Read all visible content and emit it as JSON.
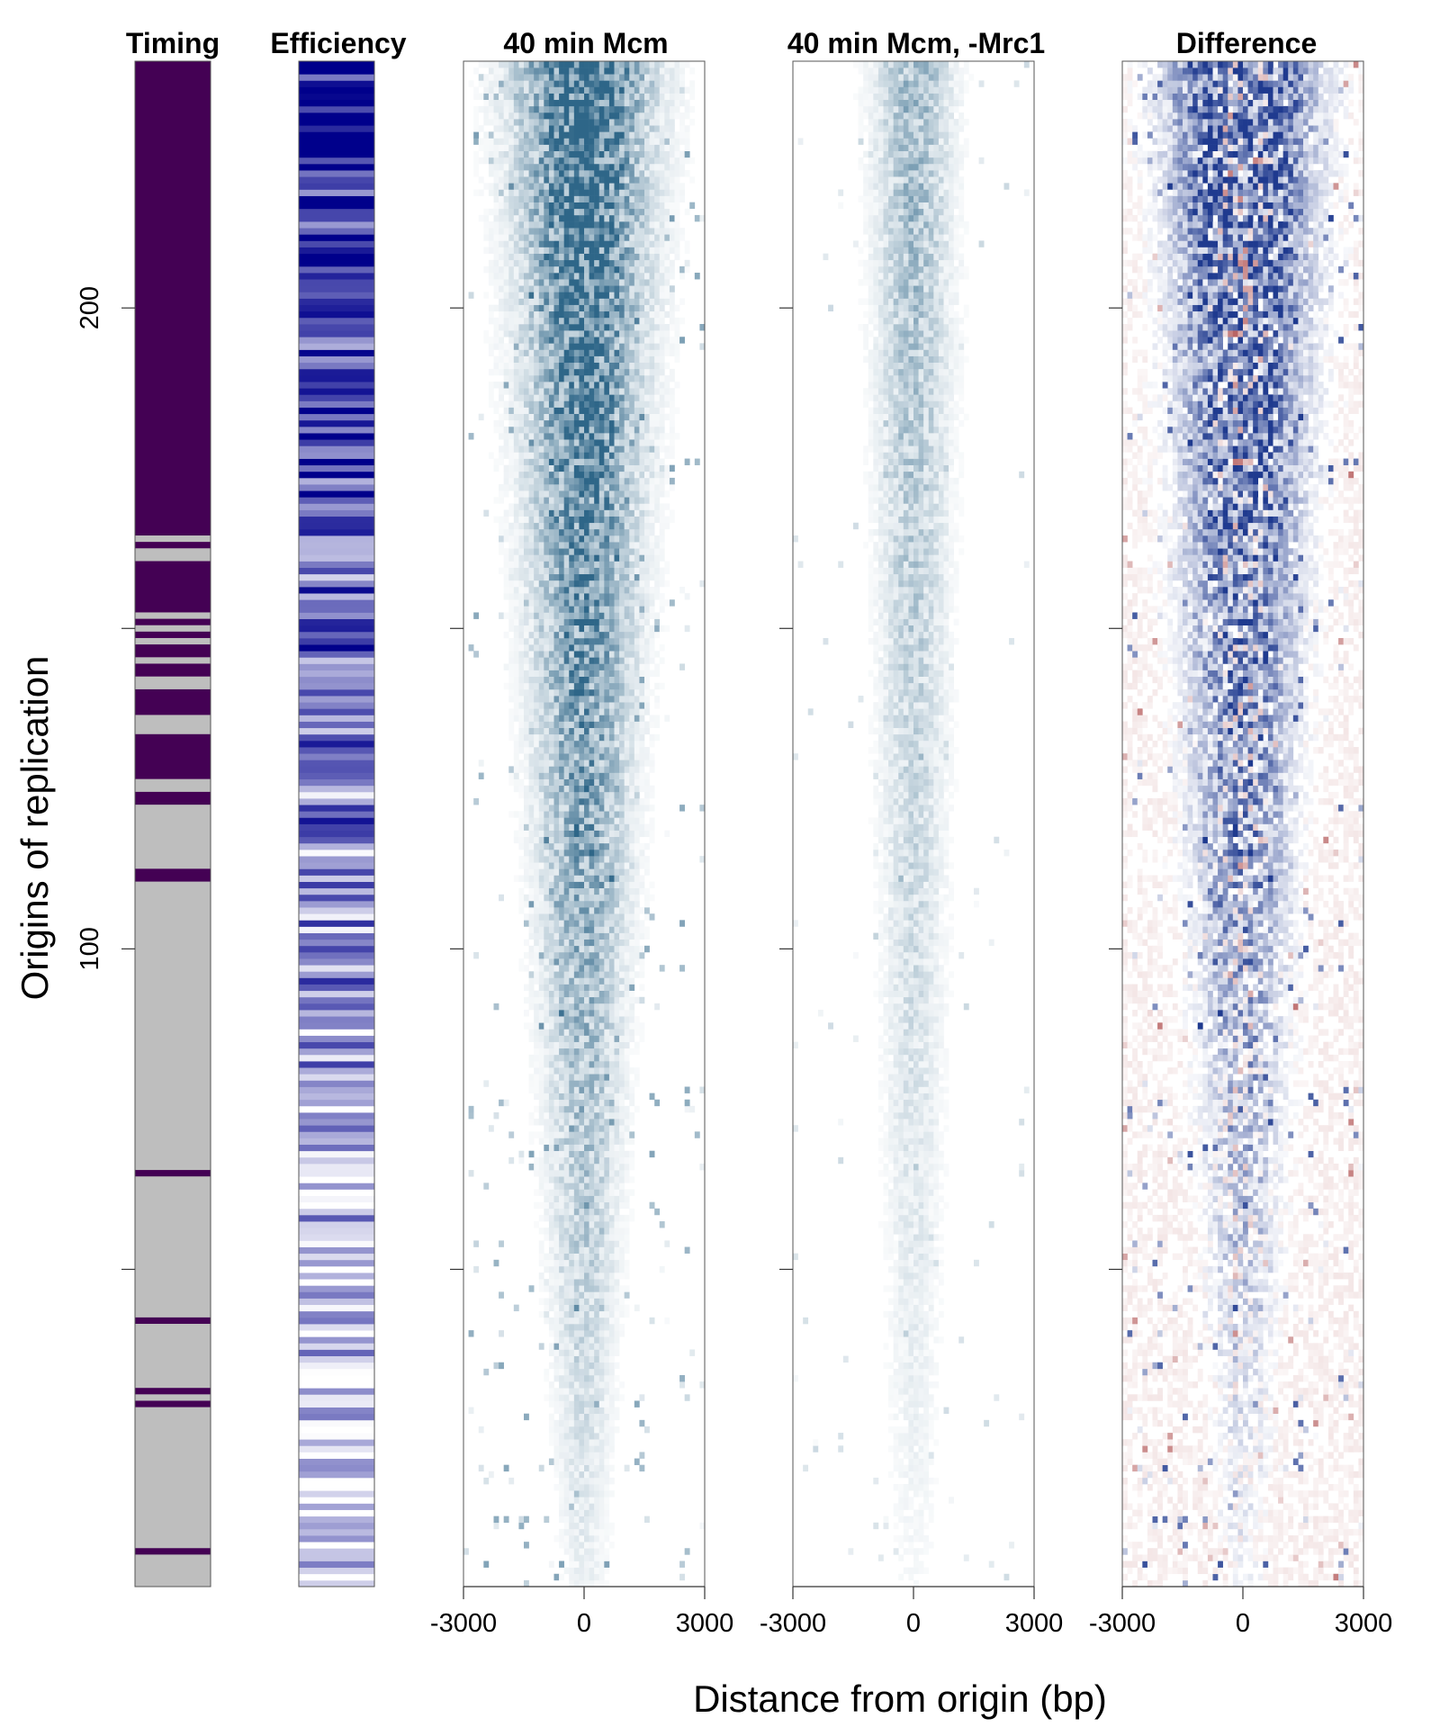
{
  "chart_data": {
    "type": "heatmap",
    "ylabel": "Origins of replication",
    "xlabel": "Distance from origin (bp)",
    "n_origins": 238,
    "yticks": [
      {
        "value": 200,
        "label": "200"
      },
      {
        "value": 150,
        "label": ""
      },
      {
        "value": 100,
        "label": "100"
      },
      {
        "value": 50,
        "label": ""
      }
    ],
    "xticks": [
      {
        "value": -3000,
        "label": "-3000"
      },
      {
        "value": 0,
        "label": "0"
      },
      {
        "value": 3000,
        "label": "3000"
      }
    ],
    "xlim": [
      -3000,
      3000
    ],
    "panels": [
      {
        "id": "timing",
        "title": "Timing",
        "kind": "category",
        "colors": {
          "early": "#440154",
          "late": "#bebebe"
        },
        "early_origins": [
          [
            165,
            238
          ],
          [
            163,
            163
          ],
          [
            153,
            160
          ],
          [
            151,
            151
          ],
          [
            149,
            149
          ],
          [
            146,
            147
          ],
          [
            143,
            144
          ],
          [
            137,
            140
          ],
          [
            127,
            133
          ],
          [
            123,
            124
          ],
          [
            111,
            112
          ],
          [
            65,
            65
          ],
          [
            42,
            42
          ],
          [
            31,
            31
          ],
          [
            29,
            29
          ],
          [
            6,
            6
          ]
        ]
      },
      {
        "id": "efficiency",
        "title": "Efficiency",
        "kind": "gradient",
        "colors": {
          "low": "#ffffff",
          "high": "#00008b"
        },
        "value_range": [
          0,
          1
        ]
      },
      {
        "id": "mcm40",
        "title": "40 min Mcm",
        "kind": "profile",
        "colors": {
          "low": "#ffffff",
          "high": "#2e6688"
        },
        "overall_strength": 1.0
      },
      {
        "id": "mrc1",
        "title": "40 min Mcm, -Mrc1",
        "kind": "profile",
        "colors": {
          "low": "#ffffff",
          "high": "#2e6688"
        },
        "overall_strength": 0.42
      },
      {
        "id": "diff",
        "title": "Difference",
        "kind": "diverging",
        "colors": {
          "negative": "#8b0000",
          "zero": "#ffffff",
          "positive": "#1f3a8f"
        },
        "value_range": [
          -1,
          1
        ]
      }
    ]
  }
}
